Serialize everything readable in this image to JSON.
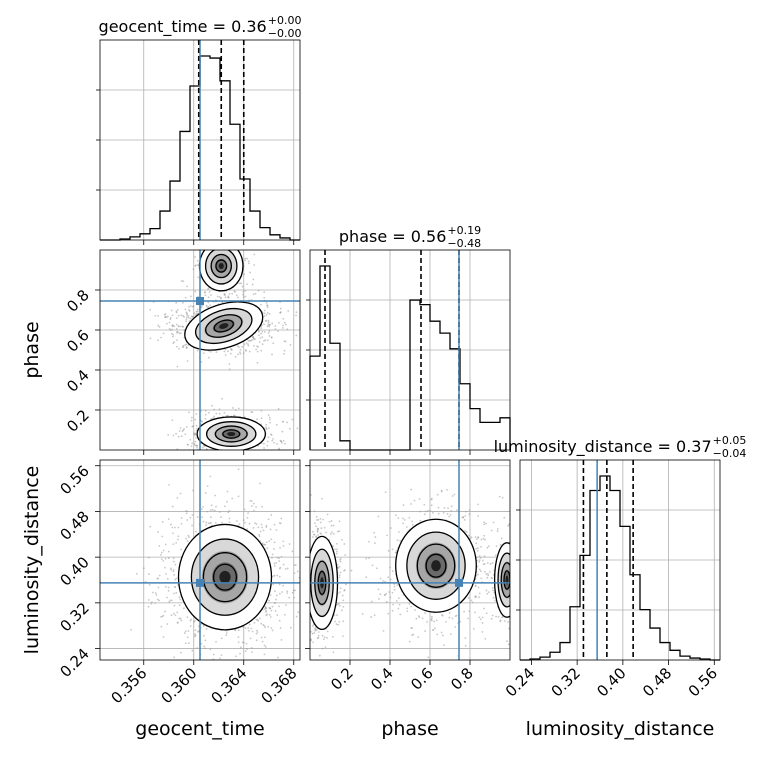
{
  "chart_data": {
    "type": "corner",
    "parameters": [
      "geocent_time",
      "phase",
      "luminosity_distance"
    ],
    "truths": {
      "geocent_time": 0.3605,
      "phase": 0.745,
      "luminosity_distance": 0.355
    },
    "titles": [
      {
        "param": "geocent_time",
        "label": "geocent_time = 0.36",
        "sup": "+0.00",
        "sub": "−0.00"
      },
      {
        "param": "phase",
        "label": "phase = 0.56",
        "sup": "+0.19",
        "sub": "−0.48"
      },
      {
        "param": "luminosity_distance",
        "label": "luminosity_distance = 0.37",
        "sup": "+0.05",
        "sub": "−0.04"
      }
    ],
    "axes": {
      "geocent_time": {
        "label": "geocent_time",
        "range": [
          0.3525,
          0.3685
        ],
        "ticks": [
          "0.356",
          "0.360",
          "0.364",
          "0.368"
        ],
        "tick_values": [
          0.356,
          0.36,
          0.364,
          0.368
        ]
      },
      "phase": {
        "label": "phase",
        "range": [
          0.0,
          1.0
        ],
        "ticks": [
          "0.2",
          "0.4",
          "0.6",
          "0.8"
        ],
        "tick_values": [
          0.2,
          0.4,
          0.6,
          0.8
        ]
      },
      "luminosity_distance": {
        "label": "luminosity_distance",
        "range": [
          0.22,
          0.57
        ],
        "ticks": [
          "0.24",
          "0.32",
          "0.40",
          "0.48",
          "0.56"
        ],
        "tick_values": [
          0.24,
          0.32,
          0.4,
          0.48,
          0.56
        ]
      }
    },
    "histograms": {
      "geocent_time": {
        "bin_edges": [
          0.3525,
          0.3533,
          0.3541,
          0.3549,
          0.3557,
          0.3565,
          0.3573,
          0.3581,
          0.3589,
          0.3597,
          0.3605,
          0.3613,
          0.3621,
          0.3629,
          0.3637,
          0.3645,
          0.3653,
          0.3661,
          0.3669,
          0.3677,
          0.3685
        ],
        "counts": [
          0,
          0,
          1,
          3,
          6,
          11,
          28,
          57,
          105,
          149,
          178,
          176,
          154,
          112,
          59,
          28,
          12,
          5,
          2,
          0
        ],
        "quantiles": [
          0.3604,
          0.3622,
          0.364
        ]
      },
      "phase": {
        "bin_edges": [
          0.0,
          0.05,
          0.1,
          0.15,
          0.2,
          0.25,
          0.3,
          0.35,
          0.4,
          0.45,
          0.5,
          0.55,
          0.6,
          0.65,
          0.7,
          0.75,
          0.8,
          0.85,
          0.9,
          0.95,
          1.0
        ],
        "counts": [
          102,
          200,
          116,
          10,
          0,
          0,
          0,
          0,
          0,
          0,
          163,
          158,
          140,
          127,
          110,
          72,
          45,
          30,
          30,
          35
        ],
        "quantiles": [
          0.075,
          0.555,
          0.745
        ]
      },
      "luminosity_distance": {
        "bin_edges": [
          0.22,
          0.2375,
          0.255,
          0.2725,
          0.29,
          0.3075,
          0.325,
          0.3425,
          0.36,
          0.3775,
          0.395,
          0.4125,
          0.43,
          0.4475,
          0.465,
          0.4825,
          0.5,
          0.5175,
          0.535,
          0.5525,
          0.57
        ],
        "counts": [
          0,
          1,
          3,
          8,
          18,
          55,
          108,
          175,
          190,
          175,
          138,
          88,
          52,
          33,
          18,
          10,
          4,
          2,
          1,
          0
        ],
        "quantiles": [
          0.331,
          0.372,
          0.418
        ]
      }
    },
    "grid": true
  }
}
